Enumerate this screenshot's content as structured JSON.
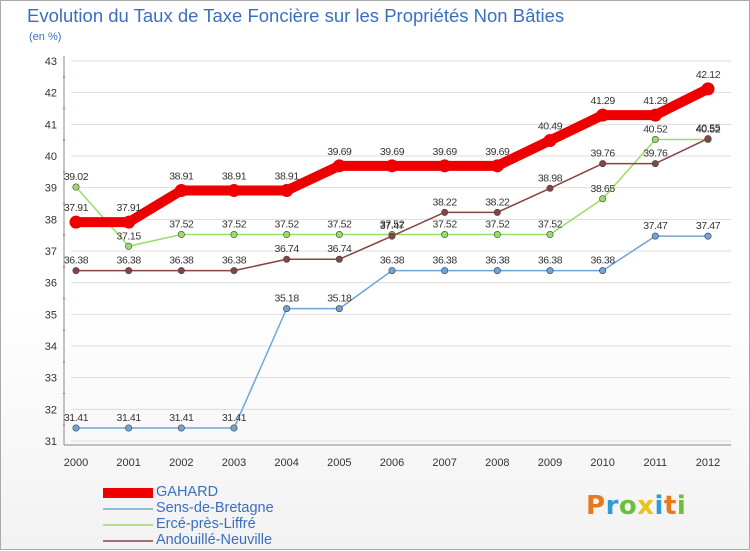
{
  "title": "Evolution du Taux de Taxe Foncière sur les Propriétés Non Bâties",
  "subtitle": "(en %)",
  "logo_text": "Proxiti",
  "logo_colors": [
    "#e87a1e",
    "#2e9bd6",
    "#6cbf3a",
    "#e8c21e",
    "#2e9bd6",
    "#e87a1e",
    "#6cbf3a"
  ],
  "chart_data": {
    "type": "line",
    "title": "Evolution du Taux de Taxe Foncière sur les Propriétés Non Bâties",
    "ylabel": "(en %)",
    "xlabel": "",
    "ylim": [
      31,
      43
    ],
    "yticks": [
      31,
      32,
      33,
      34,
      35,
      36,
      37,
      38,
      39,
      40,
      41,
      42,
      43
    ],
    "x": [
      "2000",
      "2001",
      "2002",
      "2003",
      "2004",
      "2005",
      "2006",
      "2007",
      "2008",
      "2009",
      "2010",
      "2011",
      "2012"
    ],
    "grid": true,
    "series": [
      {
        "name": "GAHARD",
        "color": "#ee0000",
        "values": [
          37.91,
          37.91,
          38.91,
          38.91,
          38.91,
          39.69,
          39.69,
          39.69,
          39.69,
          40.49,
          41.29,
          41.29,
          42.12
        ],
        "labels": [
          "37.91",
          "37.91",
          "38.91",
          "38.91",
          "38.91",
          "39.69",
          "39.69",
          "39.69",
          "39.69",
          "40.49",
          "41.29",
          "41.29",
          "42.12"
        ]
      },
      {
        "name": "Sens-de-Bretagne",
        "color": "#6fa4d8",
        "values": [
          31.41,
          31.41,
          31.41,
          31.41,
          35.18,
          35.18,
          36.38,
          36.38,
          36.38,
          36.38,
          36.38,
          37.47,
          37.47
        ],
        "labels": [
          "31.41",
          "31.41",
          "31.41",
          "31.41",
          "35.18",
          "35.18",
          "36.38",
          "36.38",
          "36.38",
          "36.38",
          "36.38",
          "37.47",
          "37.47"
        ]
      },
      {
        "name": "Ercé-près-Liffré",
        "color": "#99dd66",
        "values": [
          39.02,
          37.15,
          37.52,
          37.52,
          37.52,
          37.52,
          37.52,
          37.52,
          37.52,
          37.52,
          38.65,
          40.52,
          40.52
        ],
        "labels": [
          "39.02",
          "37.15",
          "37.52",
          "37.52",
          "37.52",
          "37.52",
          "37.52",
          "37.52",
          "37.52",
          "37.52",
          "38.65",
          "40.52",
          "40.52"
        ]
      },
      {
        "name": "Andouillé-Neuville",
        "color": "#884444",
        "values": [
          36.38,
          36.38,
          36.38,
          36.38,
          36.74,
          36.74,
          37.47,
          38.22,
          38.22,
          38.98,
          39.76,
          39.76,
          40.55
        ],
        "labels": [
          "36.38",
          "36.38",
          "36.38",
          "36.38",
          "36.74",
          "36.74",
          "37.47",
          "38.22",
          "38.22",
          "38.98",
          "39.76",
          "39.76",
          "40.55"
        ]
      }
    ]
  }
}
